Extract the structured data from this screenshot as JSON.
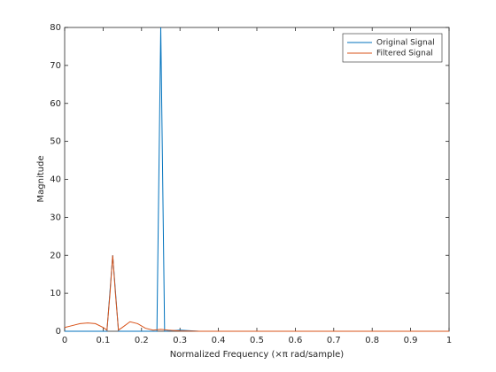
{
  "chart_data": {
    "type": "line",
    "xlabel": "Normalized Frequency (×π rad/sample)",
    "ylabel": "Magnitude",
    "xlim": [
      0,
      1
    ],
    "ylim": [
      0,
      80
    ],
    "xticks": [
      0,
      0.1,
      0.2,
      0.3,
      0.4,
      0.5,
      0.6,
      0.7,
      0.8,
      0.9,
      1
    ],
    "yticks": [
      0,
      10,
      20,
      30,
      40,
      50,
      60,
      70,
      80
    ],
    "legend": "upper-right",
    "series": [
      {
        "name": "Original Signal",
        "color": "#0072bd",
        "x": [
          0,
          0.11,
          0.125,
          0.14,
          0.24,
          0.25,
          0.26,
          0.3,
          0.35,
          1
        ],
        "values": [
          0,
          0,
          20,
          0,
          0,
          80,
          0,
          0.3,
          0,
          0
        ]
      },
      {
        "name": "Filtered Signal",
        "color": "#d95319",
        "x": [
          0,
          0.02,
          0.04,
          0.06,
          0.08,
          0.1,
          0.11,
          0.118,
          0.125,
          0.132,
          0.14,
          0.15,
          0.17,
          0.19,
          0.21,
          0.23,
          0.25,
          0.27,
          0.3,
          0.35,
          0.5,
          1
        ],
        "values": [
          1,
          1.5,
          2,
          2.2,
          2,
          1,
          0.3,
          10,
          20,
          10,
          0.3,
          1,
          2.5,
          2,
          0.8,
          0.3,
          0.5,
          0.3,
          0.1,
          0,
          0,
          0
        ]
      }
    ]
  }
}
